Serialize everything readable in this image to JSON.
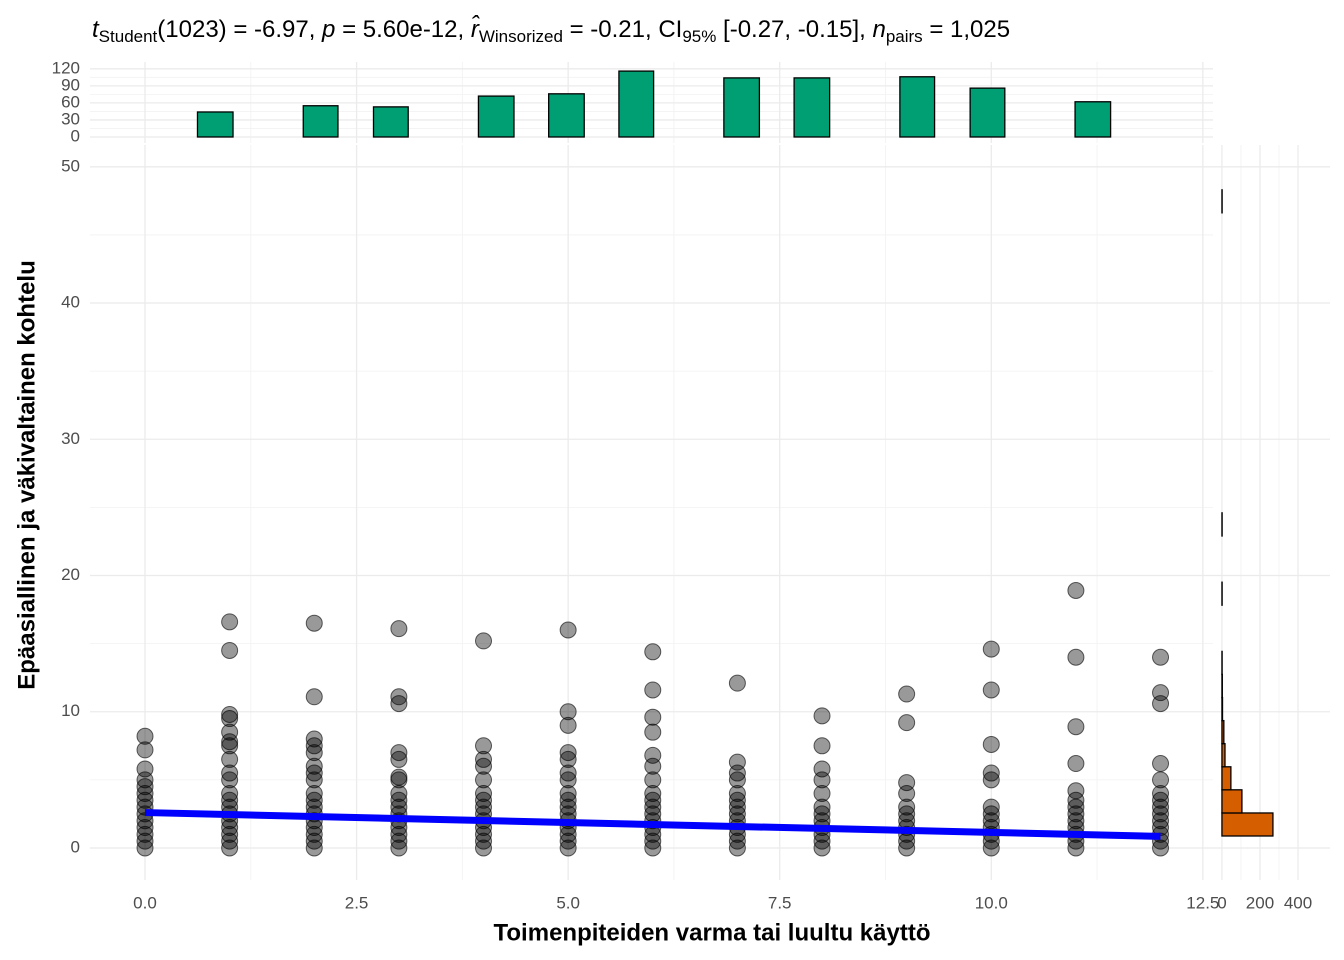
{
  "chart_data": [
    {
      "type": "scatter",
      "title_parts": [
        {
          "text": "t",
          "italic": true
        },
        {
          "text": "Student",
          "sub": true
        },
        {
          "text": "(1023) = -6.97, "
        },
        {
          "text": "p",
          "italic": true
        },
        {
          "text": " = 5.60e-12, "
        },
        {
          "text": "r̂",
          "italic": true
        },
        {
          "text": "Winsorized",
          "sub": true
        },
        {
          "text": " = -0.21, CI"
        },
        {
          "text": "95%",
          "sub": true
        },
        {
          "text": " [-0.27, -0.15], "
        },
        {
          "text": "n",
          "italic": true
        },
        {
          "text": "pairs",
          "sub": true
        },
        {
          "text": " = 1,025"
        }
      ],
      "x_label": "Toimenpiteiden varma tai luultu käyttö",
      "y_label": "Epäasiallinen ja väkivaltainen kohtelu",
      "xlim": [
        -0.65,
        12.62
      ],
      "ylim": [
        -2.35,
        51.6
      ],
      "xticks": [
        {
          "value": 0,
          "label": "0.0"
        },
        {
          "value": 2.5,
          "label": "2.5"
        },
        {
          "value": 5,
          "label": "5.0"
        },
        {
          "value": 7.5,
          "label": "7.5"
        },
        {
          "value": 10,
          "label": "10.0"
        },
        {
          "value": 12.5,
          "label": "12.5"
        }
      ],
      "yticks": [
        0,
        10,
        20,
        30,
        40,
        50
      ],
      "grid": true,
      "color": "#000000",
      "groups": [
        {
          "x": 0,
          "values": [
            0,
            0.5,
            1,
            1.5,
            2,
            2.5,
            3,
            3.5,
            4,
            4.5,
            5,
            5.8,
            7.2,
            8.2
          ]
        },
        {
          "x": 1,
          "values": [
            0,
            0.5,
            1,
            1.5,
            2,
            2.5,
            3,
            3.5,
            4,
            5,
            5.5,
            6.5,
            7.5,
            7.8,
            8.5,
            9.5,
            9.8,
            14.5,
            16.6
          ]
        },
        {
          "x": 2,
          "values": [
            0,
            0.5,
            1,
            1.5,
            2,
            2.5,
            3,
            3.5,
            4,
            5,
            5.5,
            6,
            7,
            7.5,
            8,
            11.1,
            16.5
          ]
        },
        {
          "x": 3,
          "values": [
            0,
            0.5,
            1,
            1.5,
            2,
            2.5,
            3,
            3.5,
            4,
            5,
            5.2,
            6.5,
            7,
            10.6,
            11.1,
            16.1
          ]
        },
        {
          "x": 4,
          "values": [
            0,
            0.5,
            1,
            1.5,
            2,
            2.5,
            3,
            3.5,
            4,
            5,
            6,
            6.5,
            7.5,
            15.2
          ]
        },
        {
          "x": 5,
          "values": [
            0,
            0.5,
            1,
            1.5,
            2,
            2.5,
            3,
            3.5,
            4,
            5,
            5.5,
            6.5,
            7,
            9,
            10,
            16
          ]
        },
        {
          "x": 6,
          "values": [
            0,
            0.5,
            1,
            1.5,
            2,
            2.5,
            3,
            3.5,
            4,
            5,
            6,
            6.8,
            8.5,
            9.6,
            11.6,
            14.4
          ]
        },
        {
          "x": 7,
          "values": [
            0,
            0.5,
            1,
            1.5,
            2,
            2.5,
            3,
            3.5,
            4,
            5,
            5.5,
            6.3,
            12.1
          ]
        },
        {
          "x": 8,
          "values": [
            0,
            0.5,
            1,
            1.5,
            2,
            2.5,
            3,
            4,
            5,
            5.8,
            7.5,
            9.7
          ]
        },
        {
          "x": 9,
          "values": [
            0,
            0.5,
            1,
            1.5,
            2,
            2.5,
            3,
            4,
            4.8,
            9.2,
            11.3
          ]
        },
        {
          "x": 10,
          "values": [
            0,
            0.5,
            1,
            1.5,
            2,
            2.5,
            3,
            5,
            5.5,
            7.6,
            11.6,
            14.6
          ]
        },
        {
          "x": 11,
          "values": [
            0,
            0.5,
            1,
            1.5,
            2,
            2.5,
            3,
            3.5,
            4.2,
            6.2,
            8.9,
            14,
            18.9
          ]
        },
        {
          "x": 12,
          "values": [
            0,
            0.5,
            1,
            1.5,
            2,
            2.5,
            3,
            3.5,
            4,
            5,
            6.2,
            10.6,
            11.4,
            14
          ]
        }
      ],
      "fit": {
        "x": [
          0,
          12
        ],
        "values": [
          2.6,
          0.85
        ],
        "color": "#0000ff"
      }
    },
    {
      "type": "histogram",
      "orientation": "vertical",
      "color": "#009e73",
      "ylim": [
        -10.6,
        132
      ],
      "yticks": [
        0,
        30,
        60,
        90,
        120
      ],
      "grid": true,
      "bins": [
        0.21,
        0.62,
        1.04,
        1.45,
        1.87,
        2.28,
        2.7,
        3.11,
        3.53,
        3.94,
        4.36,
        4.77,
        5.19,
        5.6,
        6.01,
        6.43,
        6.84,
        7.26,
        7.67,
        8.09,
        8.5,
        8.92,
        9.33,
        9.75,
        10.16,
        10.58,
        10.99,
        11.41,
        11.82
      ],
      "values": [
        0,
        44,
        0,
        0,
        55,
        0,
        53,
        0,
        0,
        72,
        0,
        76,
        0,
        116,
        0,
        0,
        104,
        0,
        104,
        0,
        0,
        106,
        0,
        86,
        0,
        0,
        62,
        0
      ]
    },
    {
      "type": "histogram",
      "orientation": "horizontal",
      "color": "#d55e00",
      "xlim": [
        -47,
        568
      ],
      "xticks": [
        0,
        200,
        400
      ],
      "grid": true,
      "bins": [
        0.88,
        2.57,
        4.27,
        5.96,
        7.66,
        9.35,
        11.04,
        12.74,
        14.43,
        16.13,
        17.82,
        19.51,
        21.21,
        22.9,
        24.6,
        26.29,
        27.98,
        29.68,
        31.37,
        33.07,
        34.76,
        36.45,
        38.15,
        39.84,
        41.54,
        43.23,
        44.92,
        46.62,
        48.31
      ],
      "values": [
        268,
        105,
        47,
        16,
        10,
        3,
        2,
        1,
        0,
        0,
        1,
        0,
        0,
        1,
        0,
        0,
        0,
        0,
        0,
        0,
        0,
        0,
        0,
        0,
        0,
        0,
        0,
        1
      ]
    }
  ]
}
